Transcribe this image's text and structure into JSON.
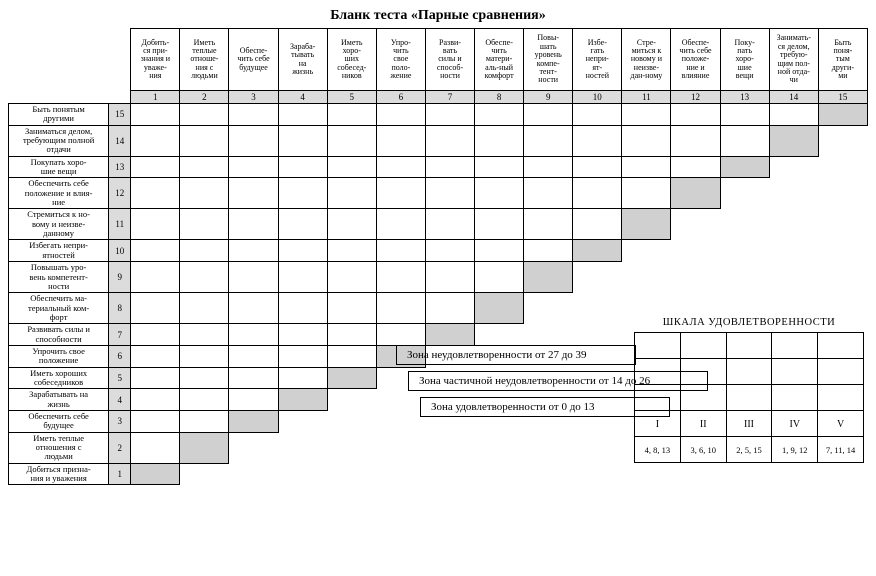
{
  "title": "Бланк теста «Парные сравнения»",
  "columns": [
    "Добить-\nся при-\nзнания и\nуваже-\nния",
    "Иметь\nтеплые\nотноше-\nния с\nлюдьми",
    "Обеспе-\nчить себе\nбудущее",
    "Зараба-\nтывать\nна\nжизнь",
    "Иметь\nхоро-\nших\nсобесед-\nников",
    "Упро-\nчить\nсвое\nполо-\nжение",
    "Разви-\nвать\nсилы и\nспособ-\nности",
    "Обеспе-\nчить\nматери-\nаль-ный\nкомфорт",
    "Повы-\nшать\nуровень\nкомпе-\nтент-\nности",
    "Избе-\nгать\nнепри-\nят-\nностей",
    "Стре-\nмиться к\nновому и\nнеизве-\nдан-ному",
    "Обеспе-\nчить себе\nположе-\nние и\nвлияние",
    "Поку-\nпать\nхоро-\nшие\nвещи",
    "Занимать-\nся делом,\nтребую-\nщим пол-\nной отда-\nчи",
    "Быть\nпоня-\nтым\nдруги-\nми"
  ],
  "colNumbers": [
    "1",
    "2",
    "3",
    "4",
    "5",
    "6",
    "7",
    "8",
    "9",
    "10",
    "11",
    "12",
    "13",
    "14",
    "15"
  ],
  "rows": [
    {
      "n": "15",
      "label": "Быть понятым\nдругими"
    },
    {
      "n": "14",
      "label": "Заниматься делом,\nтребующим полной\nотдачи"
    },
    {
      "n": "13",
      "label": "Покупать хоро-\nшие вещи"
    },
    {
      "n": "12",
      "label": "Обеспечить себе\nположение и влия-\nние"
    },
    {
      "n": "11",
      "label": "Стремиться к но-\nвому и неизве-\nданному"
    },
    {
      "n": "10",
      "label": "Избегать непри-\nятностей"
    },
    {
      "n": "9",
      "label": "Повышать уро-\nвень компетент-\nности"
    },
    {
      "n": "8",
      "label": "Обеспечить ма-\nтериальный ком-\nфорт"
    },
    {
      "n": "7",
      "label": "Развивать силы и\nспособности"
    },
    {
      "n": "6",
      "label": "Упрочить свое\nположение"
    },
    {
      "n": "5",
      "label": "Иметь хороших\nсобеседников"
    },
    {
      "n": "4",
      "label": "Зарабатывать на\nжизнь"
    },
    {
      "n": "3",
      "label": "Обеспечить себе\nбудущее"
    },
    {
      "n": "2",
      "label": "Иметь теплые\nотношения с\nлюдьми"
    },
    {
      "n": "1",
      "label": "Добиться призна-\nния и уважения"
    }
  ],
  "zones": [
    "Зона неудовлетворенности от 27 до 39",
    "Зона  частичной неудовлетворенности от 14  до 26",
    "Зона  удовлетворенности от 0 до 13"
  ],
  "scale": {
    "title": "ШКАЛА УДОВЛЕТВОРЕННОСТИ",
    "roman": [
      "I",
      "II",
      "III",
      "IV",
      "V"
    ],
    "nums": [
      "4, 8, 13",
      "3, 6, 10",
      "2, 5, 15",
      "1, 9, 12",
      "7, 11, 14"
    ]
  }
}
